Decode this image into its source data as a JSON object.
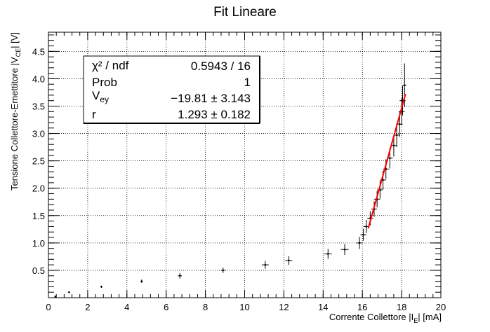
{
  "chart_data": {
    "type": "scatter",
    "title": "Fit Lineare",
    "xlabel": "Corrente Collettore |I",
    "xlabel_sub": "E",
    "xlabel_tail": "|   [mA]",
    "ylabel": "Tensione Collettore-Emettitore |V",
    "ylabel_sub": "CE",
    "ylabel_tail": "|   [V]",
    "xlim": [
      0,
      20
    ],
    "ylim": [
      0,
      4.85
    ],
    "x_ticks": [
      "0",
      "2",
      "4",
      "6",
      "8",
      "10",
      "12",
      "14",
      "16",
      "18",
      "20"
    ],
    "y_ticks": [
      "0.5",
      "1.0",
      "1.5",
      "2.0",
      "2.5",
      "3.0",
      "3.5",
      "4.0",
      "4.5"
    ],
    "grid": true,
    "series": [
      {
        "points": [
          {
            "x": 0.35,
            "y": 0.02,
            "ex": 0.02,
            "ey": 0.01
          },
          {
            "x": 1.05,
            "y": 0.1,
            "ex": 0.03,
            "ey": 0.01
          },
          {
            "x": 2.7,
            "y": 0.2,
            "ex": 0.05,
            "ey": 0.02
          },
          {
            "x": 4.75,
            "y": 0.3,
            "ex": 0.06,
            "ey": 0.03
          },
          {
            "x": 6.7,
            "y": 0.4,
            "ex": 0.1,
            "ey": 0.05
          },
          {
            "x": 8.9,
            "y": 0.5,
            "ex": 0.1,
            "ey": 0.05
          },
          {
            "x": 11.05,
            "y": 0.6,
            "ex": 0.18,
            "ey": 0.07
          },
          {
            "x": 12.25,
            "y": 0.68,
            "ex": 0.18,
            "ey": 0.08
          },
          {
            "x": 14.25,
            "y": 0.8,
            "ex": 0.2,
            "ey": 0.09
          },
          {
            "x": 15.1,
            "y": 0.88,
            "ex": 0.2,
            "ey": 0.1
          },
          {
            "x": 15.85,
            "y": 1.0,
            "ex": 0.15,
            "ey": 0.11
          },
          {
            "x": 16.05,
            "y": 1.15,
            "ex": 0.15,
            "ey": 0.11
          },
          {
            "x": 16.2,
            "y": 1.3,
            "ex": 0.15,
            "ey": 0.12
          },
          {
            "x": 16.4,
            "y": 1.45,
            "ex": 0.15,
            "ey": 0.13
          },
          {
            "x": 16.6,
            "y": 1.62,
            "ex": 0.15,
            "ey": 0.14
          },
          {
            "x": 16.75,
            "y": 1.8,
            "ex": 0.15,
            "ey": 0.15
          },
          {
            "x": 16.9,
            "y": 1.97,
            "ex": 0.15,
            "ey": 0.16
          },
          {
            "x": 17.05,
            "y": 2.15,
            "ex": 0.15,
            "ey": 0.17
          },
          {
            "x": 17.2,
            "y": 2.35,
            "ex": 0.15,
            "ey": 0.18
          },
          {
            "x": 17.4,
            "y": 2.55,
            "ex": 0.15,
            "ey": 0.19
          },
          {
            "x": 17.6,
            "y": 2.78,
            "ex": 0.15,
            "ey": 0.2
          },
          {
            "x": 17.75,
            "y": 2.97,
            "ex": 0.15,
            "ey": 0.22
          },
          {
            "x": 17.9,
            "y": 3.17,
            "ex": 0.15,
            "ey": 0.23
          },
          {
            "x": 18.0,
            "y": 3.4,
            "ex": 0.15,
            "ey": 0.25
          },
          {
            "x": 18.05,
            "y": 3.6,
            "ex": 0.15,
            "ey": 0.27
          },
          {
            "x": 18.15,
            "y": 3.88,
            "ex": 0.1,
            "ey": 0.4
          }
        ]
      }
    ],
    "fit": {
      "color": "#ff0000",
      "x_start": 16.3,
      "x_end": 18.2,
      "p0": -19.81,
      "p1": 1.293
    },
    "stats": {
      "rows": [
        {
          "label": "χ² / ndf",
          "value": "0.5943 / 16"
        },
        {
          "label": "Prob",
          "value": "1"
        },
        {
          "label": "V",
          "label_sub": "ey",
          "value": "−19.81 ± 3.143"
        },
        {
          "label": "r",
          "value": "1.293 ± 0.182"
        }
      ]
    }
  }
}
